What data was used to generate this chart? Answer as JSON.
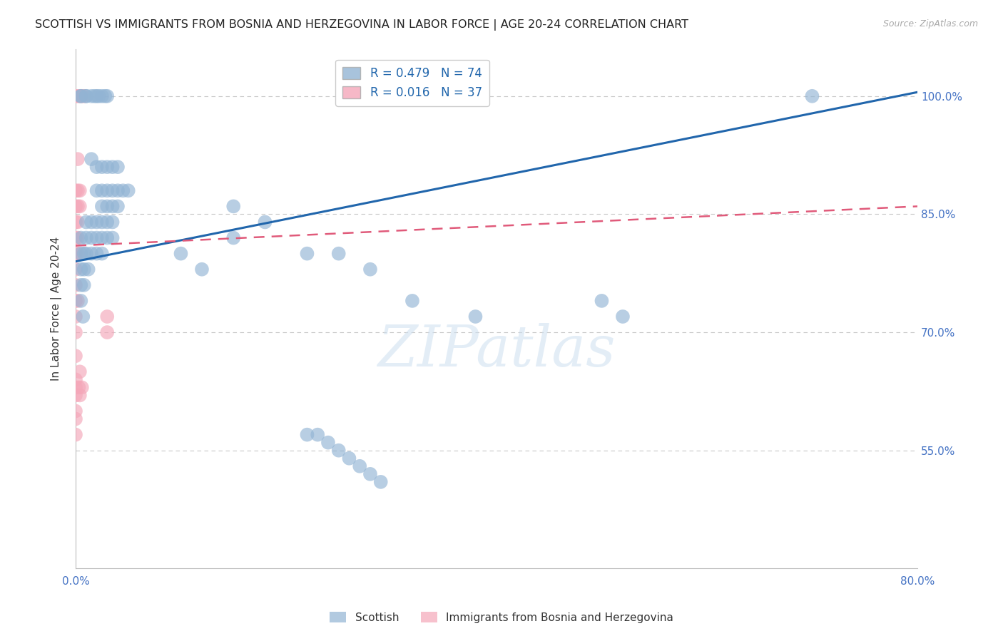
{
  "title": "SCOTTISH VS IMMIGRANTS FROM BOSNIA AND HERZEGOVINA IN LABOR FORCE | AGE 20-24 CORRELATION CHART",
  "source": "Source: ZipAtlas.com",
  "ylabel": "In Labor Force | Age 20-24",
  "x_min": 0.0,
  "x_max": 0.8,
  "y_min": 0.4,
  "y_max": 1.06,
  "yticks": [
    0.55,
    0.7,
    0.85,
    1.0
  ],
  "ytick_labels": [
    "55.0%",
    "70.0%",
    "85.0%",
    "100.0%"
  ],
  "xticks": [
    0.0,
    0.1,
    0.2,
    0.3,
    0.4,
    0.5,
    0.6,
    0.7,
    0.8
  ],
  "xtick_labels": [
    "0.0%",
    "",
    "",
    "",
    "",
    "",
    "",
    "",
    "80.0%"
  ],
  "blue_R": 0.479,
  "blue_N": 74,
  "pink_R": 0.016,
  "pink_N": 37,
  "blue_color": "#92b4d4",
  "pink_color": "#f4a7b9",
  "blue_line_color": "#2166ac",
  "pink_line_color": "#e05a7a",
  "blue_scatter": [
    [
      0.005,
      1.0
    ],
    [
      0.005,
      1.0
    ],
    [
      0.01,
      1.0
    ],
    [
      0.01,
      1.0
    ],
    [
      0.015,
      1.0
    ],
    [
      0.018,
      1.0
    ],
    [
      0.02,
      1.0
    ],
    [
      0.022,
      1.0
    ],
    [
      0.025,
      1.0
    ],
    [
      0.028,
      1.0
    ],
    [
      0.03,
      1.0
    ],
    [
      0.015,
      0.92
    ],
    [
      0.02,
      0.91
    ],
    [
      0.025,
      0.91
    ],
    [
      0.03,
      0.91
    ],
    [
      0.035,
      0.91
    ],
    [
      0.04,
      0.91
    ],
    [
      0.02,
      0.88
    ],
    [
      0.025,
      0.88
    ],
    [
      0.03,
      0.88
    ],
    [
      0.035,
      0.88
    ],
    [
      0.04,
      0.88
    ],
    [
      0.045,
      0.88
    ],
    [
      0.05,
      0.88
    ],
    [
      0.025,
      0.86
    ],
    [
      0.03,
      0.86
    ],
    [
      0.035,
      0.86
    ],
    [
      0.04,
      0.86
    ],
    [
      0.01,
      0.84
    ],
    [
      0.015,
      0.84
    ],
    [
      0.02,
      0.84
    ],
    [
      0.025,
      0.84
    ],
    [
      0.03,
      0.84
    ],
    [
      0.035,
      0.84
    ],
    [
      0.005,
      0.82
    ],
    [
      0.01,
      0.82
    ],
    [
      0.015,
      0.82
    ],
    [
      0.02,
      0.82
    ],
    [
      0.025,
      0.82
    ],
    [
      0.03,
      0.82
    ],
    [
      0.035,
      0.82
    ],
    [
      0.005,
      0.8
    ],
    [
      0.008,
      0.8
    ],
    [
      0.01,
      0.8
    ],
    [
      0.015,
      0.8
    ],
    [
      0.02,
      0.8
    ],
    [
      0.025,
      0.8
    ],
    [
      0.005,
      0.78
    ],
    [
      0.008,
      0.78
    ],
    [
      0.012,
      0.78
    ],
    [
      0.005,
      0.76
    ],
    [
      0.008,
      0.76
    ],
    [
      0.005,
      0.74
    ],
    [
      0.007,
      0.72
    ],
    [
      0.15,
      0.86
    ],
    [
      0.18,
      0.84
    ],
    [
      0.22,
      0.8
    ],
    [
      0.25,
      0.8
    ],
    [
      0.28,
      0.78
    ],
    [
      0.32,
      0.74
    ],
    [
      0.38,
      0.72
    ],
    [
      0.5,
      0.74
    ],
    [
      0.52,
      0.72
    ],
    [
      0.22,
      0.57
    ],
    [
      0.23,
      0.57
    ],
    [
      0.24,
      0.56
    ],
    [
      0.25,
      0.55
    ],
    [
      0.26,
      0.54
    ],
    [
      0.27,
      0.53
    ],
    [
      0.28,
      0.52
    ],
    [
      0.29,
      0.51
    ],
    [
      0.7,
      1.0
    ],
    [
      0.15,
      0.82
    ],
    [
      0.1,
      0.8
    ],
    [
      0.12,
      0.78
    ]
  ],
  "pink_scatter": [
    [
      0.0,
      1.0
    ],
    [
      0.002,
      1.0
    ],
    [
      0.004,
      1.0
    ],
    [
      0.006,
      1.0
    ],
    [
      0.008,
      1.0
    ],
    [
      0.002,
      0.92
    ],
    [
      0.0,
      0.88
    ],
    [
      0.002,
      0.88
    ],
    [
      0.004,
      0.88
    ],
    [
      0.0,
      0.86
    ],
    [
      0.002,
      0.86
    ],
    [
      0.004,
      0.86
    ],
    [
      0.0,
      0.84
    ],
    [
      0.002,
      0.84
    ],
    [
      0.0,
      0.82
    ],
    [
      0.002,
      0.82
    ],
    [
      0.0,
      0.8
    ],
    [
      0.002,
      0.8
    ],
    [
      0.0,
      0.78
    ],
    [
      0.0,
      0.76
    ],
    [
      0.0,
      0.74
    ],
    [
      0.002,
      0.74
    ],
    [
      0.0,
      0.72
    ],
    [
      0.0,
      0.7
    ],
    [
      0.0,
      0.67
    ],
    [
      0.004,
      0.65
    ],
    [
      0.006,
      0.63
    ],
    [
      0.004,
      0.62
    ],
    [
      0.003,
      0.63
    ],
    [
      0.03,
      0.72
    ],
    [
      0.03,
      0.7
    ],
    [
      0.0,
      0.64
    ],
    [
      0.0,
      0.63
    ],
    [
      0.0,
      0.62
    ],
    [
      0.0,
      0.6
    ],
    [
      0.0,
      0.59
    ],
    [
      0.0,
      0.57
    ]
  ],
  "blue_trend_x": [
    0.0,
    0.8
  ],
  "blue_trend_y": [
    0.79,
    1.005
  ],
  "pink_trend_x": [
    0.0,
    0.8
  ],
  "pink_trend_y": [
    0.81,
    0.86
  ],
  "watermark_text": "ZIPatlas",
  "background_color": "#ffffff",
  "grid_color": "#c8c8c8",
  "tick_color": "#4472c4",
  "title_fontsize": 11.5,
  "axis_label_fontsize": 11,
  "tick_fontsize": 11
}
